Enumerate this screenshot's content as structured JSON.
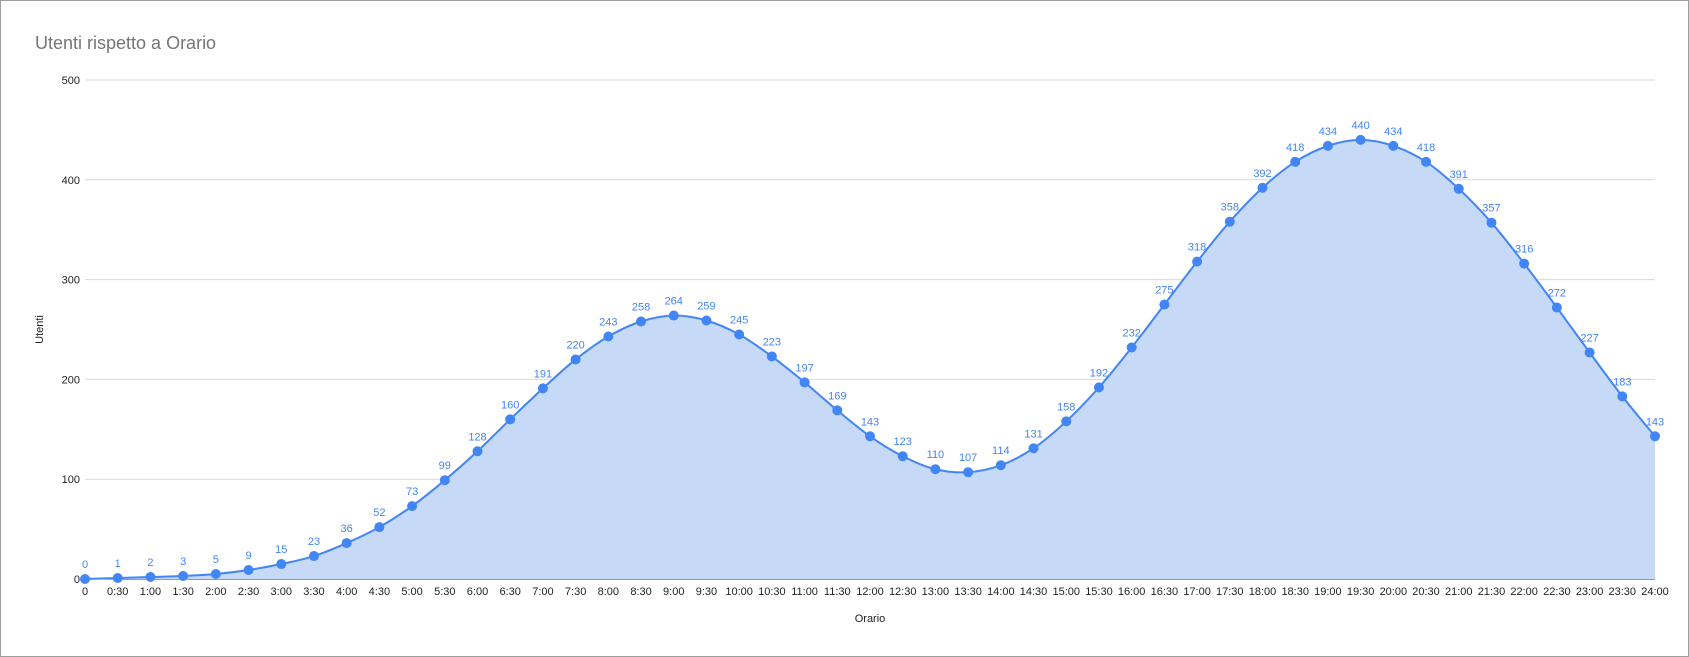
{
  "chart_data": {
    "type": "area",
    "title": "Utenti rispetto a Orario",
    "xlabel": "Orario",
    "ylabel": "Utenti",
    "ylim": [
      0,
      500
    ],
    "yticks": [
      0,
      100,
      200,
      300,
      400,
      500
    ],
    "grid": true,
    "legend": "none",
    "colors": {
      "series": "#4285f4",
      "fill": "#c6daf8",
      "grid": "#d9d9d9",
      "label": "#4285f4"
    },
    "categories": [
      "0",
      "0:30",
      "1:00",
      "1:30",
      "2:00",
      "2:30",
      "3:00",
      "3:30",
      "4:00",
      "4:30",
      "5:00",
      "5:30",
      "6:00",
      "6:30",
      "7:00",
      "7:30",
      "8:00",
      "8:30",
      "9:00",
      "9:30",
      "10:00",
      "10:30",
      "11:00",
      "11:30",
      "12:00",
      "12:30",
      "13:00",
      "13:30",
      "14:00",
      "14:30",
      "15:00",
      "15:30",
      "16:00",
      "16:30",
      "17:00",
      "17:30",
      "18:00",
      "18:30",
      "19:00",
      "19:30",
      "20:00",
      "20:30",
      "21:00",
      "21:30",
      "22:00",
      "22:30",
      "23:00",
      "23:30",
      "24:00"
    ],
    "series": [
      {
        "values": [
          0,
          1,
          2,
          3,
          5,
          9,
          15,
          23,
          36,
          52,
          73,
          99,
          128,
          160,
          191,
          220,
          243,
          258,
          264,
          259,
          245,
          223,
          197,
          169,
          143,
          123,
          110,
          107,
          114,
          131,
          158,
          192,
          232,
          275,
          318,
          358,
          392,
          418,
          434,
          440,
          434,
          418,
          391,
          357,
          316,
          272,
          227,
          183,
          143
        ]
      }
    ]
  }
}
